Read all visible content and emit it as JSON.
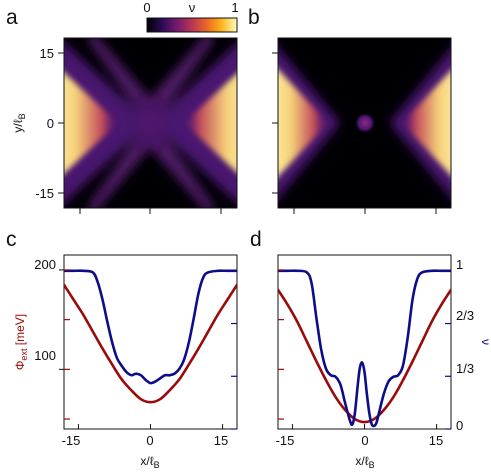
{
  "colors": {
    "phi_curve": "#9b0a0a",
    "nu_curve": "#0d0d8a",
    "axis": "#111111",
    "colormap": [
      "#000004",
      "#2b0b57",
      "#741a6e",
      "#b63655",
      "#ed6925",
      "#fbb61a",
      "#fcfdbf"
    ]
  },
  "panels": {
    "a": {
      "letter": "a"
    },
    "b": {
      "letter": "b"
    },
    "c": {
      "letter": "c"
    },
    "d": {
      "letter": "d"
    }
  },
  "colorbar": {
    "label": "ν",
    "min_label": "0",
    "max_label": "1",
    "range": [
      0,
      1
    ]
  },
  "chart_data": [
    {
      "type": "heatmap",
      "panel": "a",
      "quantity": "ν",
      "xlim": [
        -18,
        18
      ],
      "ylim": [
        -18,
        18
      ],
      "ylabel": {
        "main": "y/ℓ",
        "sub": "B"
      },
      "yticks": [
        15,
        0,
        -15
      ],
      "ytick_labels": [
        "15",
        "0",
        "-15"
      ],
      "xticks": [
        -15,
        0,
        15
      ],
      "pattern": "X-shaped filling: ν≈1 at left and right edges, a faint purple cross through the centre"
    },
    {
      "type": "heatmap",
      "panel": "b",
      "quantity": "ν",
      "xlim": [
        -18,
        18
      ],
      "ylim": [
        -18,
        18
      ],
      "yticks": [
        15,
        0,
        -15
      ],
      "xticks": [
        -15,
        0,
        15
      ],
      "pattern": "ν≈1 at left and right edges, empty centre with a small isolated dot at the origin"
    },
    {
      "type": "line",
      "panel": "c",
      "xlim": [
        -18,
        18
      ],
      "xticks": [
        -15,
        0,
        15
      ],
      "xtick_labels": [
        "-15",
        "0",
        "15"
      ],
      "xlabel": {
        "main": "x/ℓ",
        "sub": "B"
      },
      "ylim_left": [
        40,
        215
      ],
      "yticks_left": [
        200,
        100
      ],
      "ytick_labels_left": [
        "200",
        "100"
      ],
      "ylabel_left": {
        "main": "Φ",
        "sub": "ext",
        "suffix": " [meV]"
      },
      "ylim_right": [
        0,
        1.1
      ],
      "series": [
        {
          "name": "Φext",
          "axis": "left",
          "x": [
            -18,
            -16,
            -14,
            -12,
            -10,
            -8,
            -6,
            -4,
            -2,
            0,
            2,
            4,
            6,
            8,
            10,
            12,
            14,
            16,
            18
          ],
          "values": [
            185,
            170,
            155,
            138,
            121,
            105,
            90,
            79,
            70,
            67,
            70,
            79,
            90,
            105,
            121,
            138,
            155,
            170,
            185
          ]
        },
        {
          "name": "ν",
          "axis": "right",
          "x": [
            -18,
            -16,
            -14,
            -12,
            -11,
            -10,
            -9,
            -8,
            -7,
            -6,
            -5,
            -4,
            -3,
            -2,
            -1,
            0,
            1,
            2,
            3,
            4,
            5,
            6,
            7,
            8,
            9,
            10,
            11,
            12,
            14,
            16,
            18
          ],
          "values": [
            1.0,
            1.0,
            1.0,
            0.99,
            0.93,
            0.82,
            0.68,
            0.55,
            0.45,
            0.4,
            0.36,
            0.34,
            0.35,
            0.34,
            0.31,
            0.29,
            0.3,
            0.32,
            0.34,
            0.34,
            0.35,
            0.38,
            0.44,
            0.55,
            0.7,
            0.86,
            0.96,
            0.99,
            1.0,
            1.0,
            1.0
          ]
        }
      ]
    },
    {
      "type": "line",
      "panel": "d",
      "xlim": [
        -18,
        18
      ],
      "xticks": [
        -15,
        0,
        15
      ],
      "xtick_labels": [
        "-15",
        "0",
        "15"
      ],
      "xlabel": {
        "main": "x/ℓ",
        "sub": "B"
      },
      "ylim_left": [
        40,
        215
      ],
      "yticks_left": [
        200,
        100
      ],
      "ylim_right": [
        0,
        1.1
      ],
      "yticks_right": [
        1,
        0.6667,
        0.3333,
        0
      ],
      "ytick_labels_right": [
        "1",
        "2/3",
        "1/3",
        "0"
      ],
      "ylabel_right": "ν",
      "series": [
        {
          "name": "Φext",
          "axis": "left",
          "x": [
            -18,
            -16,
            -14,
            -12,
            -10,
            -8,
            -6,
            -4,
            -2,
            0,
            2,
            4,
            6,
            8,
            10,
            12,
            14,
            16,
            18
          ],
          "values": [
            180,
            165,
            148,
            128,
            108,
            89,
            72,
            59,
            50,
            47,
            50,
            59,
            72,
            89,
            108,
            128,
            148,
            165,
            180
          ]
        },
        {
          "name": "ν",
          "axis": "right",
          "x": [
            -18,
            -16,
            -14,
            -12,
            -11,
            -10,
            -9,
            -8,
            -7,
            -6,
            -5,
            -4,
            -3,
            -2.5,
            -2,
            -1.5,
            -1,
            -0.5,
            0,
            0.5,
            1,
            1.5,
            2,
            2.5,
            3,
            4,
            5,
            6,
            7,
            8,
            9,
            10,
            11,
            12,
            14,
            16,
            18
          ],
          "values": [
            1.0,
            1.0,
            1.0,
            0.99,
            0.92,
            0.7,
            0.5,
            0.38,
            0.34,
            0.33,
            0.28,
            0.16,
            0.05,
            0.03,
            0.1,
            0.25,
            0.38,
            0.42,
            0.36,
            0.22,
            0.1,
            0.03,
            0.02,
            0.04,
            0.1,
            0.22,
            0.3,
            0.33,
            0.34,
            0.4,
            0.58,
            0.82,
            0.95,
            0.99,
            1.0,
            1.0,
            1.0
          ]
        }
      ]
    }
  ]
}
